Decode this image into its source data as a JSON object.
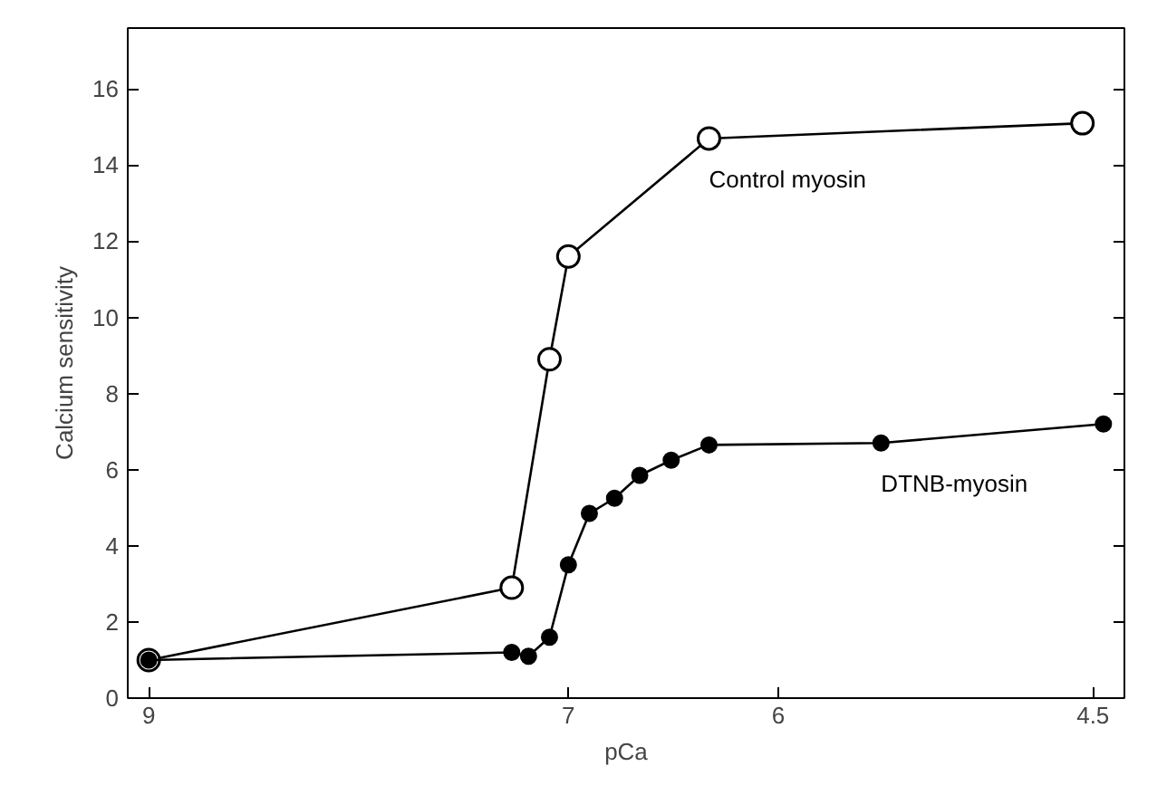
{
  "chart_data": {
    "type": "line",
    "xlabel": "pCa",
    "ylabel": "Calcium sensitivity",
    "xlim": [
      9.1,
      4.35
    ],
    "ylim": [
      0,
      17.6
    ],
    "xticks": [
      9,
      7,
      6,
      4.5
    ],
    "yticks": [
      0,
      2,
      4,
      6,
      8,
      10,
      12,
      14,
      16
    ],
    "marker": "circle",
    "line_style": "solid",
    "grid": false,
    "series": [
      {
        "name": "Control myosin",
        "color": "#000000",
        "x": [
          9,
          7.27,
          7.09,
          7.0,
          6.33,
          4.55
        ],
        "values": [
          1.0,
          2.9,
          8.9,
          11.6,
          14.7,
          15.1
        ]
      },
      {
        "name": "DTNB-myosin",
        "color": "#000000",
        "x": [
          9,
          7.27,
          7.19,
          7.09,
          7.0,
          6.9,
          6.78,
          6.66,
          6.51,
          6.33,
          5.51,
          4.45
        ],
        "values": [
          1.0,
          1.2,
          1.1,
          1.6,
          3.5,
          4.85,
          5.25,
          5.85,
          6.25,
          6.65,
          6.7,
          7.2
        ]
      }
    ]
  }
}
